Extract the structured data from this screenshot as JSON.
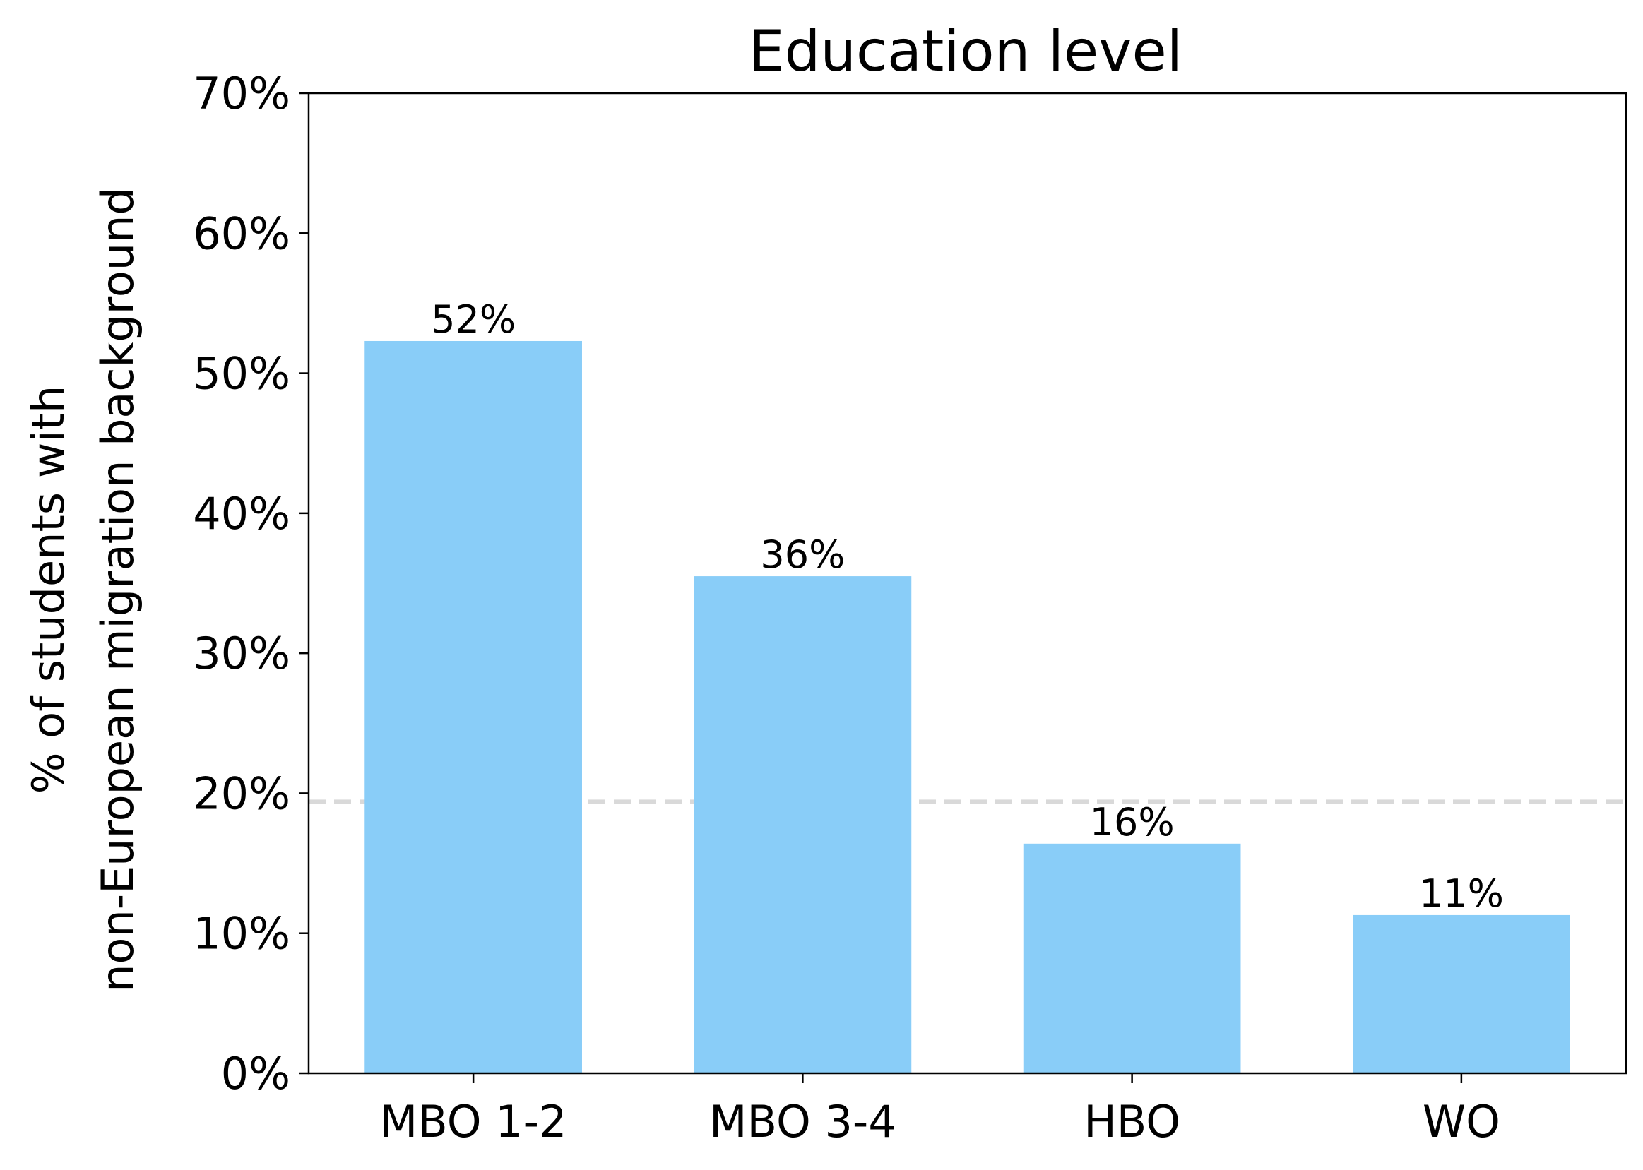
{
  "chart_data": {
    "type": "bar",
    "title": "Education level",
    "xlabel": "",
    "ylabel_lines": [
      "% of students with",
      "non-European migration background"
    ],
    "categories": [
      "MBO 1-2",
      "MBO 3-4",
      "HBO",
      "WO"
    ],
    "values": [
      52.3,
      35.5,
      16.4,
      11.3
    ],
    "value_labels": [
      "52%",
      "36%",
      "16%",
      "11%"
    ],
    "ylim": [
      0,
      70
    ],
    "yticks": [
      0,
      10,
      20,
      30,
      40,
      50,
      60,
      70
    ],
    "ytick_labels": [
      "0%",
      "10%",
      "20%",
      "30%",
      "40%",
      "50%",
      "60%",
      "70%"
    ],
    "reference_line": {
      "value": 19.4,
      "style": "dashed",
      "color": "#d9d9d9"
    },
    "bar_color": "#89cdf8",
    "grid": false
  }
}
